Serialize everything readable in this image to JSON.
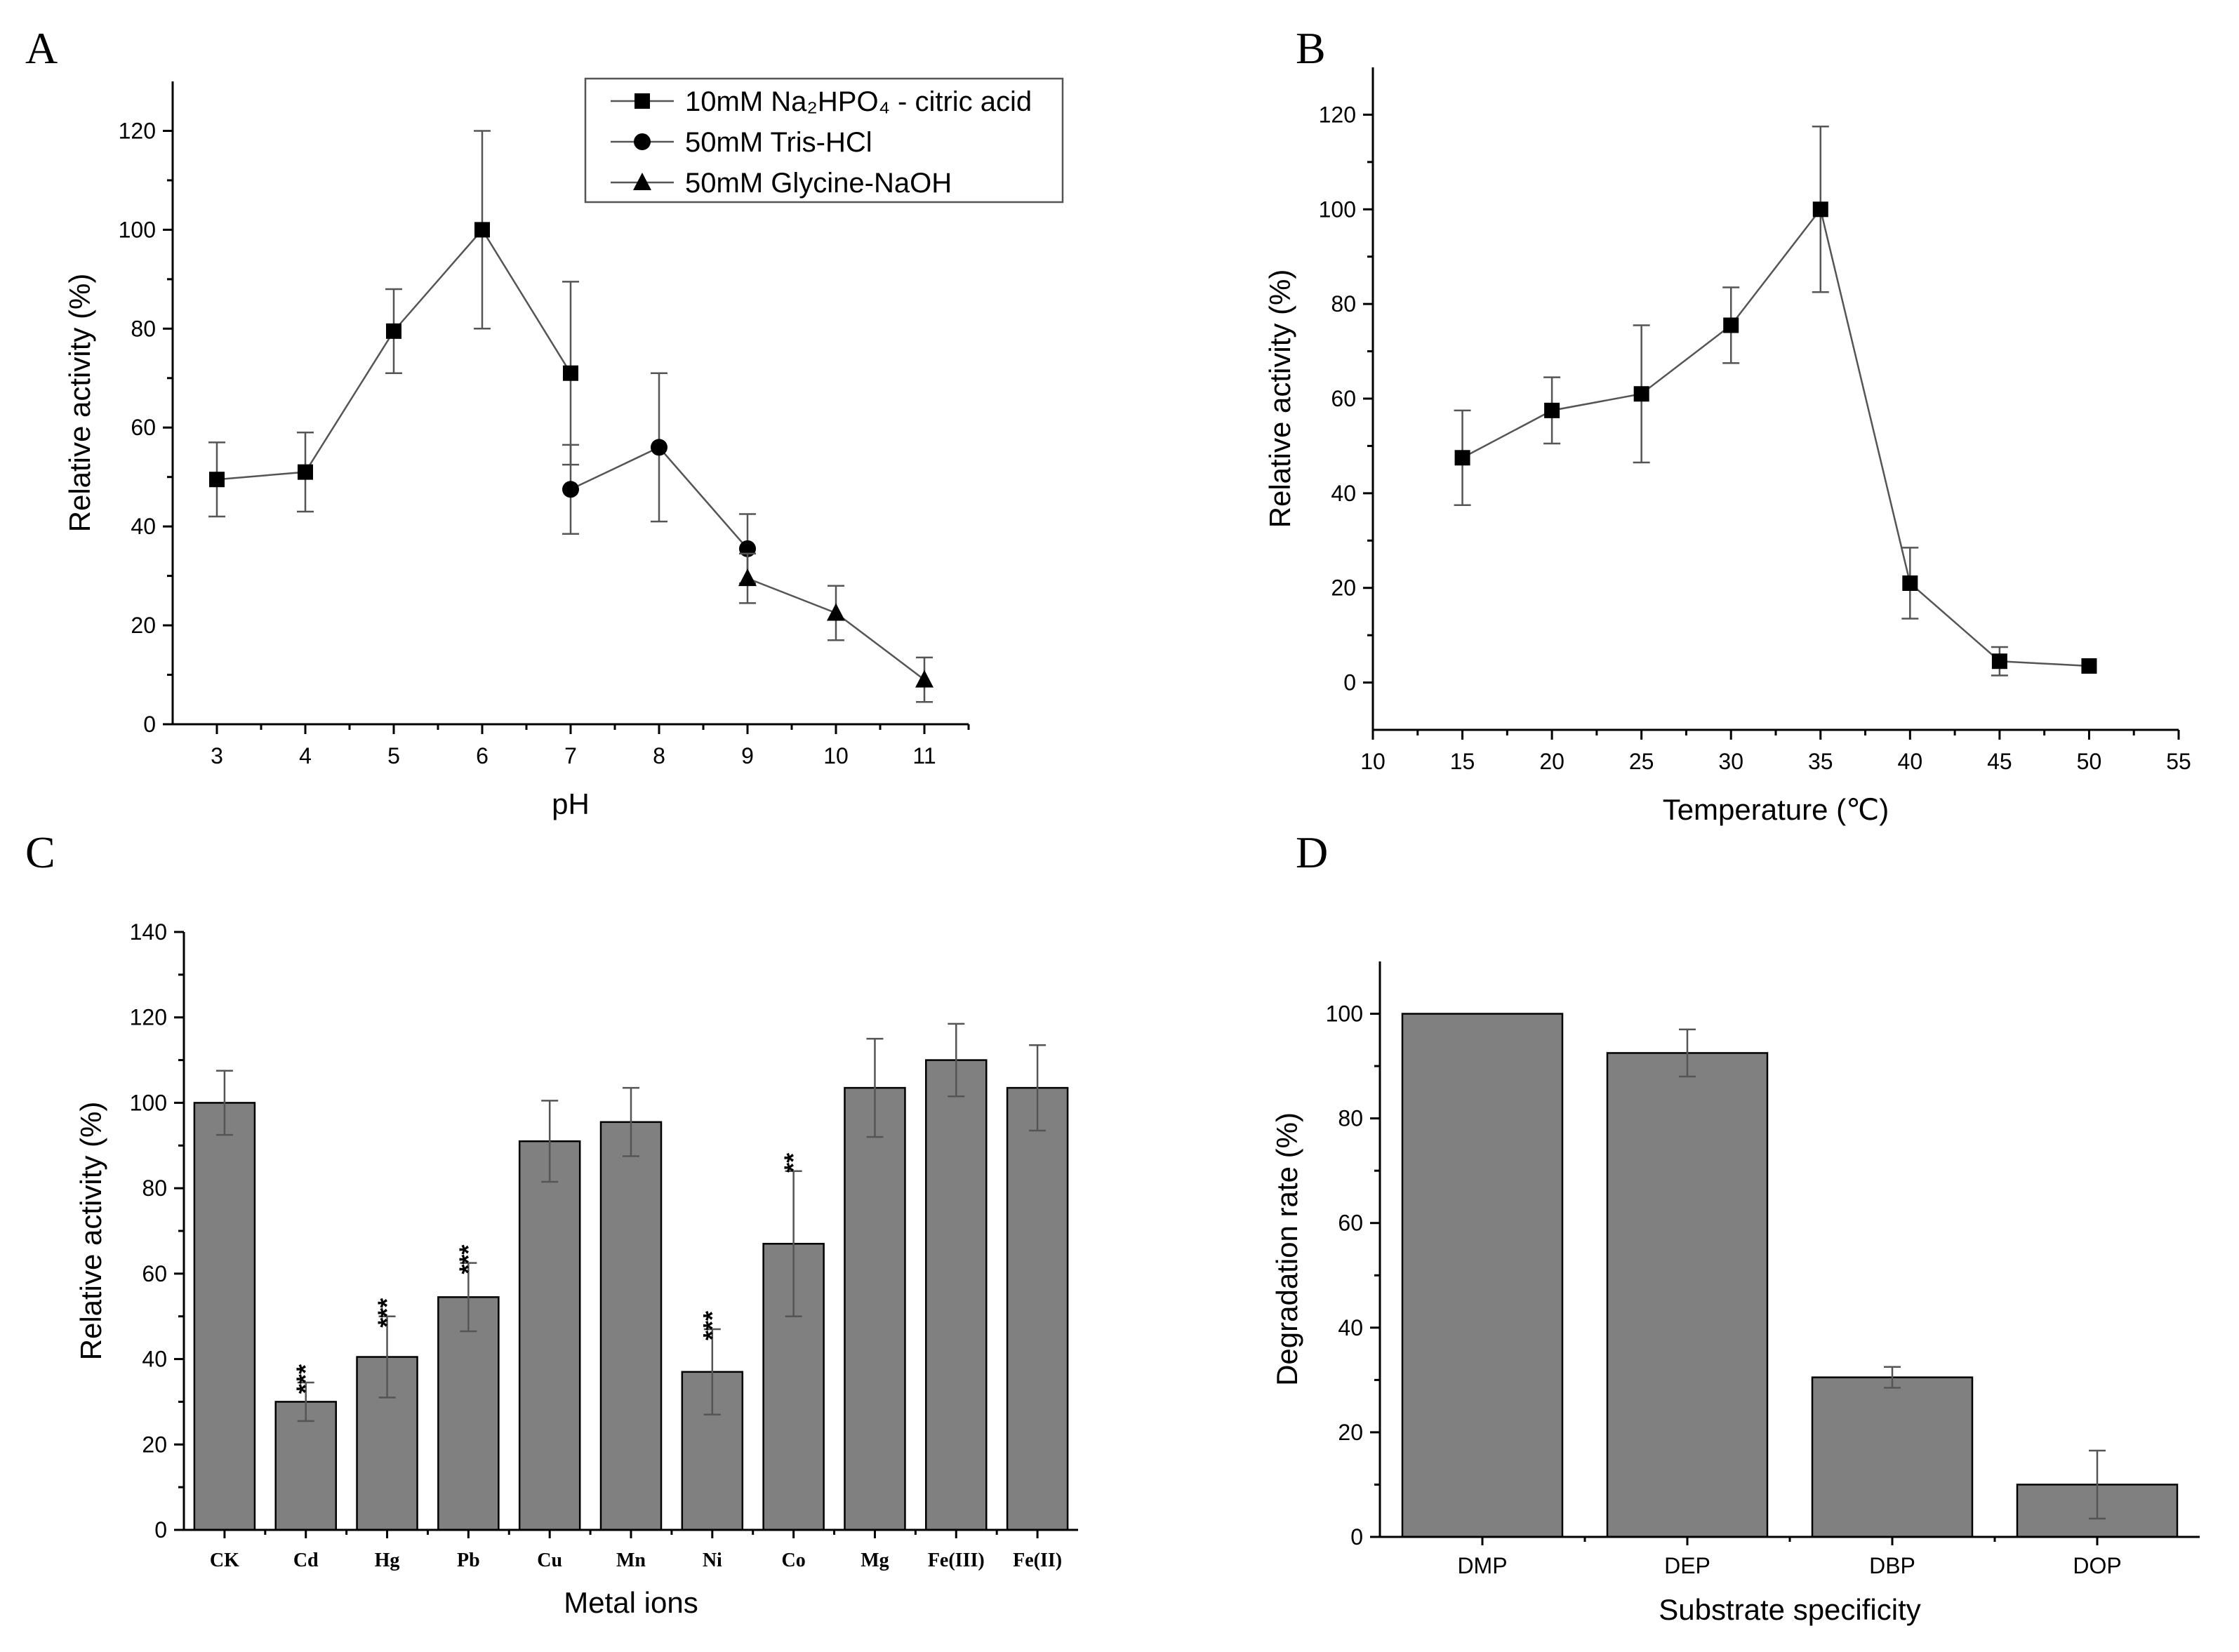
{
  "chart_data": [
    {
      "panel": "A",
      "type": "line",
      "xlabel": "pH",
      "ylabel": "Relative activity (%)",
      "xlim": [
        2.5,
        11.5
      ],
      "ylim": [
        0,
        130
      ],
      "xticks": [
        3,
        4,
        5,
        6,
        7,
        8,
        9,
        10,
        11
      ],
      "yticks": [
        0,
        20,
        40,
        60,
        80,
        100,
        120
      ],
      "legend_position": "top-right",
      "series": [
        {
          "name": "10mM Na₂HPO₄ - citric acid",
          "marker": "square",
          "x": [
            3,
            4,
            5,
            6,
            7
          ],
          "y": [
            49.5,
            51,
            79.5,
            100,
            71
          ],
          "err": [
            7.5,
            8,
            8.5,
            20,
            18.5
          ]
        },
        {
          "name": "50mM Tris-HCl",
          "marker": "circle",
          "x": [
            7,
            8,
            9
          ],
          "y": [
            47.5,
            56,
            35.5
          ],
          "err": [
            9,
            15,
            7
          ]
        },
        {
          "name": "50mM Glycine-NaOH",
          "marker": "triangle",
          "x": [
            9,
            10,
            11
          ],
          "y": [
            29.5,
            22.5,
            9
          ],
          "err": [
            5,
            5.5,
            4.5
          ]
        }
      ]
    },
    {
      "panel": "B",
      "type": "line",
      "xlabel": "Temperature (℃)",
      "ylabel": "Relative activity (%)",
      "xlim": [
        10,
        55
      ],
      "ylim": [
        -10,
        130
      ],
      "xticks": [
        10,
        15,
        20,
        25,
        30,
        35,
        40,
        45,
        50,
        55
      ],
      "yticks": [
        0,
        20,
        40,
        60,
        80,
        100,
        120
      ],
      "series": [
        {
          "marker": "square",
          "x": [
            15,
            20,
            25,
            30,
            35,
            40,
            45,
            50
          ],
          "y": [
            47.5,
            57.5,
            61,
            75.5,
            100,
            21,
            4.5,
            3.5
          ],
          "err": [
            10,
            7,
            14.5,
            8,
            17.5,
            7.5,
            3,
            0
          ]
        }
      ]
    },
    {
      "panel": "C",
      "type": "bar",
      "xlabel": "Metal ions",
      "ylabel": "Relative activity (%)",
      "ylim": [
        0,
        140
      ],
      "yticks": [
        0,
        20,
        40,
        60,
        80,
        100,
        120,
        140
      ],
      "categories": [
        "CK",
        "Cd",
        "Hg",
        "Pb",
        "Cu",
        "Mn",
        "Ni",
        "Co",
        "Mg",
        "Fe(III)",
        "Fe(II)"
      ],
      "values": [
        100,
        30,
        40.5,
        54.5,
        91,
        95.5,
        37,
        67,
        103.5,
        110,
        103.5
      ],
      "err": [
        7.5,
        4.5,
        9.5,
        8,
        9.5,
        8,
        10,
        17,
        11.5,
        8.5,
        10
      ],
      "annotations": [
        "",
        "***",
        "***",
        "***",
        "",
        "",
        "***",
        "**",
        "",
        "",
        ""
      ]
    },
    {
      "panel": "D",
      "type": "bar",
      "xlabel": "Substrate specificity",
      "ylabel": "Degradation rate (%)",
      "ylim": [
        0,
        110
      ],
      "yticks": [
        0,
        20,
        40,
        60,
        80,
        100
      ],
      "categories": [
        "DMP",
        "DEP",
        "DBP",
        "DOP"
      ],
      "values": [
        100,
        92.5,
        30.5,
        10
      ],
      "err": [
        0,
        4.5,
        2,
        6.5
      ]
    }
  ]
}
